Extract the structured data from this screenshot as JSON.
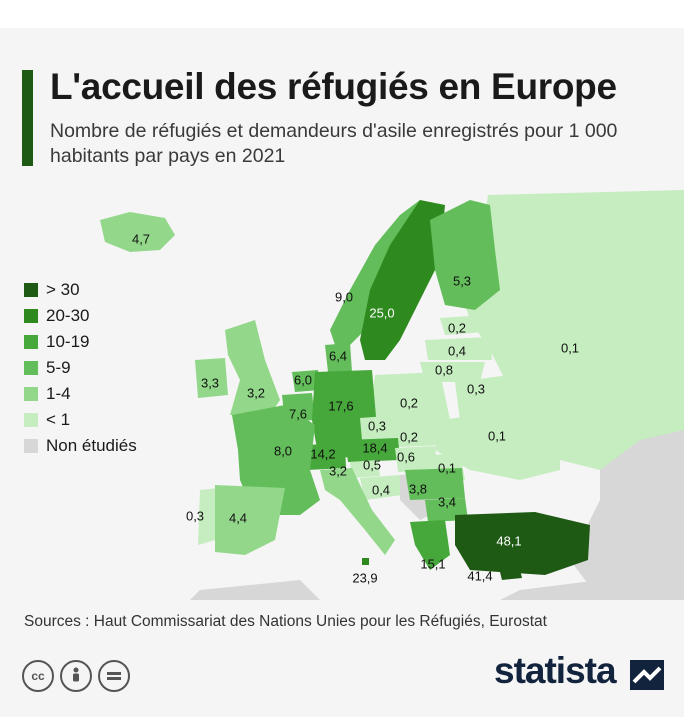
{
  "title": "L'accueil des réfugiés en Europe",
  "subtitle": "Nombre de réfugiés et demandeurs d'asile enregistrés pour 1 000 habitants par pays en 2021",
  "legend": [
    {
      "label": "> 30",
      "color": "#1e5a14"
    },
    {
      "label": "20-30",
      "color": "#2e8a1e"
    },
    {
      "label": "10-19",
      "color": "#46a83a"
    },
    {
      "label": "5-9",
      "color": "#62bd5a"
    },
    {
      "label": "1-4",
      "color": "#93d88a"
    },
    {
      "label": "< 1",
      "color": "#c5edbf"
    },
    {
      "label": "Non étudiés",
      "color": "#d7d7d7"
    }
  ],
  "values": {
    "iceland": "4,7",
    "norway": "9,0",
    "sweden": "25,0",
    "finland": "5,3",
    "russia": "0,1",
    "estonia": "0,2",
    "latvia": "0,4",
    "lithuania": "0,8",
    "belarus": "0,3",
    "denmark": "6,4",
    "ireland": "3,3",
    "uk": "3,2",
    "netherlands": "6,0",
    "belgium": "7,6",
    "germany": "17,6",
    "poland": "0,2",
    "ukraine": "0,1",
    "czechia": "0,3",
    "slovakia": "0,2",
    "austria": "18,4",
    "hungary": "0,6",
    "switzerland": "14,2",
    "slovenia": "0,5",
    "moldova": "0,1",
    "france": "8,0",
    "italy": "3,2",
    "croatia": "0,4",
    "romania": "3,8",
    "bulgaria": "3,4",
    "portugal": "0,3",
    "spain": "4,4",
    "turkey": "48,1",
    "greece": "15,1",
    "cyprus": "41,4",
    "malta": "23,9"
  },
  "sources": "Sources : Haut Commissariat des Nations Unies pour les Réfugiés, Eurostat",
  "license_icons": [
    "cc-icon",
    "attribution-icon",
    "equal-icon"
  ],
  "brand": "statista"
}
